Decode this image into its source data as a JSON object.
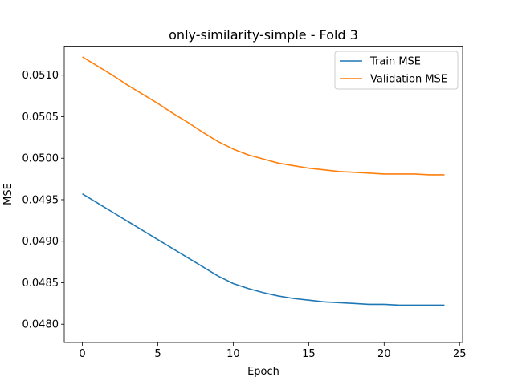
{
  "chart_data": {
    "type": "line",
    "title": "only-similarity-simple - Fold 3",
    "xlabel": "Epoch",
    "ylabel": "MSE",
    "xlim": [
      -1.2,
      25.2
    ],
    "ylim": [
      0.04778,
      0.05135
    ],
    "xticks": [
      0,
      5,
      10,
      15,
      20,
      25
    ],
    "yticks": [
      0.048,
      0.0485,
      0.049,
      0.0495,
      0.05,
      0.0505,
      0.051
    ],
    "ytick_labels": [
      "0.0480",
      "0.0485",
      "0.0490",
      "0.0495",
      "0.0500",
      "0.0505",
      "0.0510"
    ],
    "grid": false,
    "legend_position": "top-right",
    "x": [
      0,
      1,
      2,
      3,
      4,
      5,
      6,
      7,
      8,
      9,
      10,
      11,
      12,
      13,
      14,
      15,
      16,
      17,
      18,
      19,
      20,
      21,
      22,
      23,
      24
    ],
    "series": [
      {
        "name": "Train MSE",
        "color": "#1f77b4",
        "values": [
          0.04957,
          0.04946,
          0.04935,
          0.04924,
          0.04913,
          0.04902,
          0.04891,
          0.0488,
          0.04869,
          0.04858,
          0.04849,
          0.04843,
          0.04838,
          0.04834,
          0.04831,
          0.04829,
          0.04827,
          0.04826,
          0.04825,
          0.04824,
          0.04824,
          0.04823,
          0.04823,
          0.04823,
          0.04823
        ]
      },
      {
        "name": "Validation MSE",
        "color": "#ff7f0e",
        "values": [
          0.05122,
          0.05111,
          0.051,
          0.05088,
          0.05077,
          0.05066,
          0.05054,
          0.05043,
          0.05031,
          0.0502,
          0.05011,
          0.05004,
          0.04999,
          0.04994,
          0.04991,
          0.04988,
          0.04986,
          0.04984,
          0.04983,
          0.04982,
          0.04981,
          0.04981,
          0.04981,
          0.0498,
          0.0498
        ]
      }
    ]
  }
}
